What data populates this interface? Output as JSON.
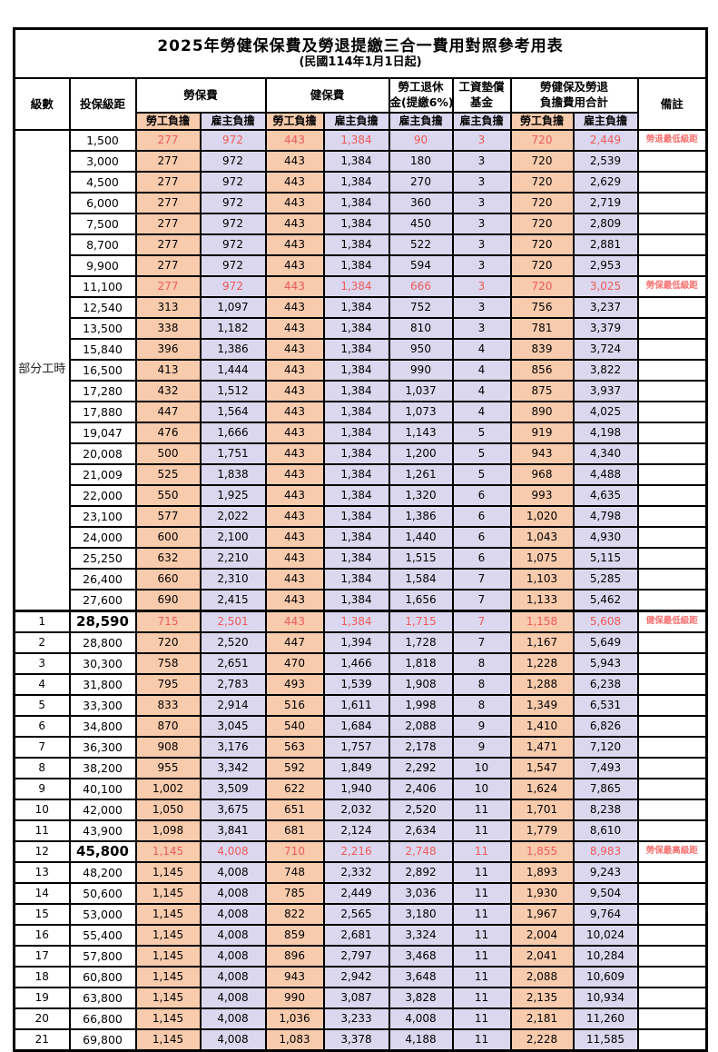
{
  "title": "2025年勞健保保費及勞退提繳三合一費用對照參考用表",
  "subtitle": "(民國114年1月1日起)",
  "colors": {
    "employee_bg": "#F8CBAD",
    "employer_bg": "#DBD7EE",
    "highlight_value_red": "#EC5A5A",
    "note_red": "#F87070",
    "grid": "#000000"
  },
  "header": {
    "level": "級數",
    "bracket": "投保級距",
    "labor_ins": "勞保費",
    "health_ins": "健保費",
    "pension_line1": "勞工退休",
    "pension_line2": "金(提繳6%)",
    "wage_fund_line1": "工資墊償",
    "wage_fund_line2": "基金",
    "total_line1": "勞健保及勞退",
    "total_line2": "負擔費用合計",
    "note": "備註",
    "employee": "勞工負擔",
    "employer": "雇主負擔"
  },
  "part_time_label": "部分工時",
  "part_time_rowspan": 23,
  "value_column_styles": [
    "emp",
    "er",
    "emp",
    "er",
    "er",
    "er",
    "emp",
    "er"
  ],
  "rows": [
    {
      "level": "",
      "bracket": "1,500",
      "vals": [
        "277",
        "972",
        "443",
        "1,384",
        "90",
        "3",
        "720",
        "2,449"
      ],
      "note": "勞退最低級距",
      "red": true
    },
    {
      "level": "",
      "bracket": "3,000",
      "vals": [
        "277",
        "972",
        "443",
        "1,384",
        "180",
        "3",
        "720",
        "2,539"
      ],
      "note": ""
    },
    {
      "level": "",
      "bracket": "4,500",
      "vals": [
        "277",
        "972",
        "443",
        "1,384",
        "270",
        "3",
        "720",
        "2,629"
      ],
      "note": ""
    },
    {
      "level": "",
      "bracket": "6,000",
      "vals": [
        "277",
        "972",
        "443",
        "1,384",
        "360",
        "3",
        "720",
        "2,719"
      ],
      "note": ""
    },
    {
      "level": "",
      "bracket": "7,500",
      "vals": [
        "277",
        "972",
        "443",
        "1,384",
        "450",
        "3",
        "720",
        "2,809"
      ],
      "note": ""
    },
    {
      "level": "",
      "bracket": "8,700",
      "vals": [
        "277",
        "972",
        "443",
        "1,384",
        "522",
        "3",
        "720",
        "2,881"
      ],
      "note": ""
    },
    {
      "level": "",
      "bracket": "9,900",
      "vals": [
        "277",
        "972",
        "443",
        "1,384",
        "594",
        "3",
        "720",
        "2,953"
      ],
      "note": ""
    },
    {
      "level": "",
      "bracket": "11,100",
      "vals": [
        "277",
        "972",
        "443",
        "1,384",
        "666",
        "3",
        "720",
        "3,025"
      ],
      "note": "勞保最低級距",
      "red": true
    },
    {
      "level": "",
      "bracket": "12,540",
      "vals": [
        "313",
        "1,097",
        "443",
        "1,384",
        "752",
        "3",
        "756",
        "3,237"
      ],
      "note": ""
    },
    {
      "level": "",
      "bracket": "13,500",
      "vals": [
        "338",
        "1,182",
        "443",
        "1,384",
        "810",
        "3",
        "781",
        "3,379"
      ],
      "note": ""
    },
    {
      "level": "",
      "bracket": "15,840",
      "vals": [
        "396",
        "1,386",
        "443",
        "1,384",
        "950",
        "4",
        "839",
        "3,724"
      ],
      "note": ""
    },
    {
      "level": "",
      "bracket": "16,500",
      "vals": [
        "413",
        "1,444",
        "443",
        "1,384",
        "990",
        "4",
        "856",
        "3,822"
      ],
      "note": ""
    },
    {
      "level": "",
      "bracket": "17,280",
      "vals": [
        "432",
        "1,512",
        "443",
        "1,384",
        "1,037",
        "4",
        "875",
        "3,937"
      ],
      "note": ""
    },
    {
      "level": "",
      "bracket": "17,880",
      "vals": [
        "447",
        "1,564",
        "443",
        "1,384",
        "1,073",
        "4",
        "890",
        "4,025"
      ],
      "note": ""
    },
    {
      "level": "",
      "bracket": "19,047",
      "vals": [
        "476",
        "1,666",
        "443",
        "1,384",
        "1,143",
        "5",
        "919",
        "4,198"
      ],
      "note": ""
    },
    {
      "level": "",
      "bracket": "20,008",
      "vals": [
        "500",
        "1,751",
        "443",
        "1,384",
        "1,200",
        "5",
        "943",
        "4,340"
      ],
      "note": ""
    },
    {
      "level": "",
      "bracket": "21,009",
      "vals": [
        "525",
        "1,838",
        "443",
        "1,384",
        "1,261",
        "5",
        "968",
        "4,488"
      ],
      "note": ""
    },
    {
      "level": "",
      "bracket": "22,000",
      "vals": [
        "550",
        "1,925",
        "443",
        "1,384",
        "1,320",
        "6",
        "993",
        "4,635"
      ],
      "note": ""
    },
    {
      "level": "",
      "bracket": "23,100",
      "vals": [
        "577",
        "2,022",
        "443",
        "1,384",
        "1,386",
        "6",
        "1,020",
        "4,798"
      ],
      "note": ""
    },
    {
      "level": "",
      "bracket": "24,000",
      "vals": [
        "600",
        "2,100",
        "443",
        "1,384",
        "1,440",
        "6",
        "1,043",
        "4,930"
      ],
      "note": ""
    },
    {
      "level": "",
      "bracket": "25,250",
      "vals": [
        "632",
        "2,210",
        "443",
        "1,384",
        "1,515",
        "6",
        "1,075",
        "5,115"
      ],
      "note": ""
    },
    {
      "level": "",
      "bracket": "26,400",
      "vals": [
        "660",
        "2,310",
        "443",
        "1,384",
        "1,584",
        "7",
        "1,103",
        "5,285"
      ],
      "note": ""
    },
    {
      "level": "",
      "bracket": "27,600",
      "vals": [
        "690",
        "2,415",
        "443",
        "1,384",
        "1,656",
        "7",
        "1,133",
        "5,462"
      ],
      "note": ""
    },
    {
      "level": "1",
      "bracket": "28,590",
      "vals": [
        "715",
        "2,501",
        "443",
        "1,384",
        "1,715",
        "7",
        "1,158",
        "5,608"
      ],
      "note": "健保最低級距",
      "red": true,
      "big": true,
      "section": true
    },
    {
      "level": "2",
      "bracket": "28,800",
      "vals": [
        "720",
        "2,520",
        "447",
        "1,394",
        "1,728",
        "7",
        "1,167",
        "5,649"
      ],
      "note": ""
    },
    {
      "level": "3",
      "bracket": "30,300",
      "vals": [
        "758",
        "2,651",
        "470",
        "1,466",
        "1,818",
        "8",
        "1,228",
        "5,943"
      ],
      "note": ""
    },
    {
      "level": "4",
      "bracket": "31,800",
      "vals": [
        "795",
        "2,783",
        "493",
        "1,539",
        "1,908",
        "8",
        "1,288",
        "6,238"
      ],
      "note": ""
    },
    {
      "level": "5",
      "bracket": "33,300",
      "vals": [
        "833",
        "2,914",
        "516",
        "1,611",
        "1,998",
        "8",
        "1,349",
        "6,531"
      ],
      "note": ""
    },
    {
      "level": "6",
      "bracket": "34,800",
      "vals": [
        "870",
        "3,045",
        "540",
        "1,684",
        "2,088",
        "9",
        "1,410",
        "6,826"
      ],
      "note": ""
    },
    {
      "level": "7",
      "bracket": "36,300",
      "vals": [
        "908",
        "3,176",
        "563",
        "1,757",
        "2,178",
        "9",
        "1,471",
        "7,120"
      ],
      "note": ""
    },
    {
      "level": "8",
      "bracket": "38,200",
      "vals": [
        "955",
        "3,342",
        "592",
        "1,849",
        "2,292",
        "10",
        "1,547",
        "7,493"
      ],
      "note": ""
    },
    {
      "level": "9",
      "bracket": "40,100",
      "vals": [
        "1,002",
        "3,509",
        "622",
        "1,940",
        "2,406",
        "10",
        "1,624",
        "7,865"
      ],
      "note": ""
    },
    {
      "level": "10",
      "bracket": "42,000",
      "vals": [
        "1,050",
        "3,675",
        "651",
        "2,032",
        "2,520",
        "11",
        "1,701",
        "8,238"
      ],
      "note": ""
    },
    {
      "level": "11",
      "bracket": "43,900",
      "vals": [
        "1,098",
        "3,841",
        "681",
        "2,124",
        "2,634",
        "11",
        "1,779",
        "8,610"
      ],
      "note": ""
    },
    {
      "level": "12",
      "bracket": "45,800",
      "vals": [
        "1,145",
        "4,008",
        "710",
        "2,216",
        "2,748",
        "11",
        "1,855",
        "8,983"
      ],
      "note": "勞保最高級距",
      "red": true,
      "big": true
    },
    {
      "level": "13",
      "bracket": "48,200",
      "vals": [
        "1,145",
        "4,008",
        "748",
        "2,332",
        "2,892",
        "11",
        "1,893",
        "9,243"
      ],
      "note": ""
    },
    {
      "level": "14",
      "bracket": "50,600",
      "vals": [
        "1,145",
        "4,008",
        "785",
        "2,449",
        "3,036",
        "11",
        "1,930",
        "9,504"
      ],
      "note": ""
    },
    {
      "level": "15",
      "bracket": "53,000",
      "vals": [
        "1,145",
        "4,008",
        "822",
        "2,565",
        "3,180",
        "11",
        "1,967",
        "9,764"
      ],
      "note": ""
    },
    {
      "level": "16",
      "bracket": "55,400",
      "vals": [
        "1,145",
        "4,008",
        "859",
        "2,681",
        "3,324",
        "11",
        "2,004",
        "10,024"
      ],
      "note": ""
    },
    {
      "level": "17",
      "bracket": "57,800",
      "vals": [
        "1,145",
        "4,008",
        "896",
        "2,797",
        "3,468",
        "11",
        "2,041",
        "10,284"
      ],
      "note": ""
    },
    {
      "level": "18",
      "bracket": "60,800",
      "vals": [
        "1,145",
        "4,008",
        "943",
        "2,942",
        "3,648",
        "11",
        "2,088",
        "10,609"
      ],
      "note": ""
    },
    {
      "level": "19",
      "bracket": "63,800",
      "vals": [
        "1,145",
        "4,008",
        "990",
        "3,087",
        "3,828",
        "11",
        "2,135",
        "10,934"
      ],
      "note": ""
    },
    {
      "level": "20",
      "bracket": "66,800",
      "vals": [
        "1,145",
        "4,008",
        "1,036",
        "3,233",
        "4,008",
        "11",
        "2,181",
        "11,260"
      ],
      "note": ""
    },
    {
      "level": "21",
      "bracket": "69,800",
      "vals": [
        "1,145",
        "4,008",
        "1,083",
        "3,378",
        "4,188",
        "11",
        "2,228",
        "11,585"
      ],
      "note": ""
    }
  ]
}
